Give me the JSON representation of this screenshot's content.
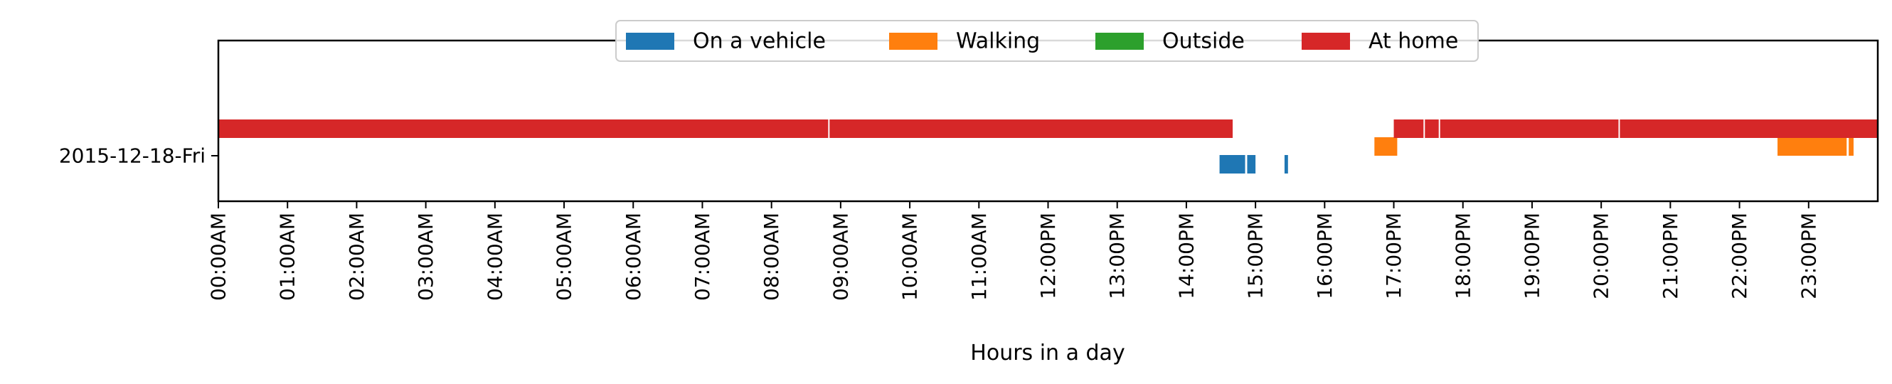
{
  "chart_data": {
    "type": "timeline",
    "title": "",
    "xlabel": "Hours in a day",
    "ylabel": "",
    "xlim": [
      0,
      24
    ],
    "y_category": "2015-12-18-Fri",
    "x_tick_labels": [
      "00:00AM",
      "01:00AM",
      "02:00AM",
      "03:00AM",
      "04:00AM",
      "05:00AM",
      "06:00AM",
      "07:00AM",
      "08:00AM",
      "09:00AM",
      "10:00AM",
      "11:00AM",
      "12:00PM",
      "13:00PM",
      "14:00PM",
      "15:00PM",
      "16:00PM",
      "17:00PM",
      "18:00PM",
      "19:00PM",
      "20:00PM",
      "21:00PM",
      "22:00PM",
      "23:00PM"
    ],
    "legend_position": "top-center",
    "series": [
      {
        "name": "On a vehicle",
        "color": "#1f77b4",
        "intervals": [
          [
            14.48,
            14.85
          ],
          [
            14.88,
            15.0
          ],
          [
            15.42,
            15.47
          ]
        ]
      },
      {
        "name": "Walking",
        "color": "#ff7f0e",
        "intervals": [
          [
            16.72,
            17.05
          ],
          [
            22.55,
            23.55
          ],
          [
            23.58,
            23.65
          ]
        ]
      },
      {
        "name": "Outside",
        "color": "#2ca02c",
        "intervals": []
      },
      {
        "name": "At home",
        "color": "#d62728",
        "intervals": [
          [
            0.0,
            8.82
          ],
          [
            8.84,
            14.67
          ],
          [
            17.0,
            17.43
          ],
          [
            17.45,
            17.65
          ],
          [
            17.67,
            20.25
          ],
          [
            20.27,
            24.0
          ]
        ]
      }
    ]
  }
}
